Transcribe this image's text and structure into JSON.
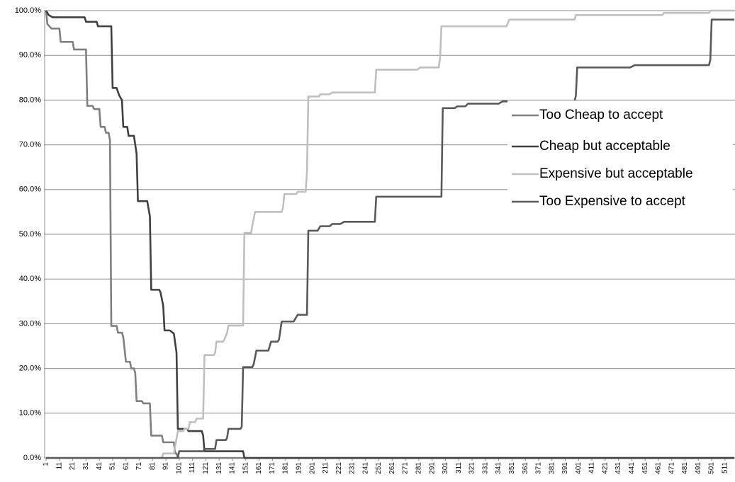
{
  "chart_data": {
    "type": "line",
    "series": [
      {
        "name": "Too Cheap to accept",
        "color": "#7f7f7f",
        "x": [
          1,
          2,
          5,
          11,
          12,
          21,
          22,
          31,
          32,
          36,
          37,
          41,
          42,
          45,
          46,
          48,
          49,
          50,
          54,
          55,
          58,
          59,
          61,
          64,
          65,
          67,
          68,
          69,
          73,
          74,
          79,
          80,
          88,
          89,
          97,
          98,
          99,
          100,
          518
        ],
        "values": [
          100,
          97,
          96,
          96,
          93,
          93,
          91.3,
          91.3,
          78.7,
          78.7,
          78,
          78,
          74,
          74,
          72.7,
          72.7,
          71,
          29.5,
          29.5,
          28,
          28,
          27,
          21.5,
          21.5,
          20,
          20,
          19,
          12.7,
          12.7,
          12.2,
          12.2,
          5,
          5,
          3.5,
          3.5,
          1,
          1,
          0,
          0
        ]
      },
      {
        "name": "Cheap but acceptable",
        "color": "#404040",
        "x": [
          1,
          3,
          6,
          30,
          31,
          39,
          40,
          50,
          51,
          54,
          56,
          58,
          59,
          62,
          63,
          67,
          69,
          70,
          77,
          79,
          80,
          86,
          87,
          89,
          90,
          94,
          97,
          99,
          100,
          107,
          108,
          118,
          119,
          120,
          149,
          150,
          518
        ],
        "values": [
          100,
          99,
          98.5,
          98.5,
          97.5,
          97.5,
          96.5,
          96.5,
          82.7,
          82.7,
          81,
          80,
          74,
          74,
          72,
          72,
          68,
          57.4,
          57.4,
          54,
          37.6,
          37.6,
          37,
          34,
          28.5,
          28.5,
          27.8,
          23.5,
          6.5,
          6.5,
          6,
          6,
          5,
          1.5,
          1.5,
          0,
          0
        ]
      },
      {
        "name": "Expensive but acceptable",
        "color": "#bfbfbf",
        "x": [
          1,
          88,
          89,
          97,
          100,
          104,
          105,
          108,
          109,
          113,
          114,
          119,
          120,
          127,
          128,
          129,
          134,
          135,
          137,
          138,
          149,
          150,
          155,
          156,
          158,
          178,
          179,
          180,
          189,
          190,
          196,
          197,
          198,
          206,
          207,
          214,
          216,
          248,
          249,
          280,
          282,
          296,
          297,
          298,
          347,
          349,
          398,
          399,
          464,
          465,
          499,
          500,
          518
        ],
        "values": [
          0,
          0,
          1,
          1,
          6,
          6,
          6.5,
          6.5,
          8,
          8,
          8.8,
          8.8,
          23,
          23,
          23.5,
          26,
          26,
          26.5,
          28,
          29.6,
          29.6,
          50.3,
          50.3,
          52,
          55,
          55,
          56,
          59,
          59,
          59.5,
          59.5,
          64,
          80.8,
          80.8,
          81.3,
          81.3,
          81.7,
          81.7,
          86.8,
          86.8,
          87.3,
          87.3,
          89.5,
          96.5,
          96.5,
          98,
          98,
          99,
          99,
          99.5,
          99.5,
          100,
          100
        ]
      },
      {
        "name": "Too Expensive to accept",
        "color": "#595959",
        "x": [
          1,
          100,
          101,
          119,
          120,
          128,
          129,
          136,
          137,
          138,
          147,
          148,
          149,
          156,
          157,
          159,
          168,
          169,
          170,
          175,
          176,
          178,
          187,
          188,
          190,
          197,
          198,
          205,
          207,
          214,
          216,
          222,
          225,
          248,
          249,
          298,
          299,
          308,
          310,
          316,
          318,
          341,
          344,
          398,
          399,
          400,
          440,
          443,
          499,
          500,
          501,
          518
        ],
        "values": [
          0,
          0,
          1.5,
          1.5,
          2,
          2,
          4,
          4,
          4.5,
          6.5,
          6.5,
          7,
          20.3,
          20.3,
          21,
          24,
          24,
          25,
          26,
          26,
          26.5,
          30.5,
          30.5,
          31,
          32,
          32,
          50.8,
          50.8,
          51.8,
          51.8,
          52.3,
          52.3,
          52.8,
          52.8,
          58.4,
          58.4,
          78.2,
          78.2,
          78.6,
          78.6,
          79.2,
          79.2,
          79.7,
          79.7,
          81,
          87.3,
          87.3,
          87.8,
          87.8,
          89,
          98,
          98
        ]
      }
    ],
    "xlim": [
      1,
      518
    ],
    "xticks": [
      1,
      11,
      21,
      31,
      41,
      51,
      61,
      71,
      81,
      91,
      101,
      111,
      121,
      131,
      141,
      151,
      161,
      171,
      181,
      191,
      201,
      211,
      221,
      231,
      241,
      251,
      261,
      271,
      281,
      291,
      301,
      311,
      321,
      331,
      341,
      351,
      361,
      371,
      381,
      391,
      401,
      411,
      421,
      431,
      441,
      451,
      461,
      471,
      481,
      491,
      501,
      511
    ],
    "ylim": [
      0,
      100
    ],
    "yticks": [
      {
        "value": 0,
        "label": "0.0%"
      },
      {
        "value": 10,
        "label": "10.0%"
      },
      {
        "value": 20,
        "label": "20.0%"
      },
      {
        "value": 30,
        "label": "30.0%"
      },
      {
        "value": 40,
        "label": "40.0%"
      },
      {
        "value": 50,
        "label": "50.0%"
      },
      {
        "value": 60,
        "label": "60.0%"
      },
      {
        "value": 70,
        "label": "70.0%"
      },
      {
        "value": 80,
        "label": "80.0%"
      },
      {
        "value": 90,
        "label": "90.0%"
      },
      {
        "value": 100,
        "label": "100.0%"
      }
    ],
    "grid": true,
    "legend": "right"
  }
}
